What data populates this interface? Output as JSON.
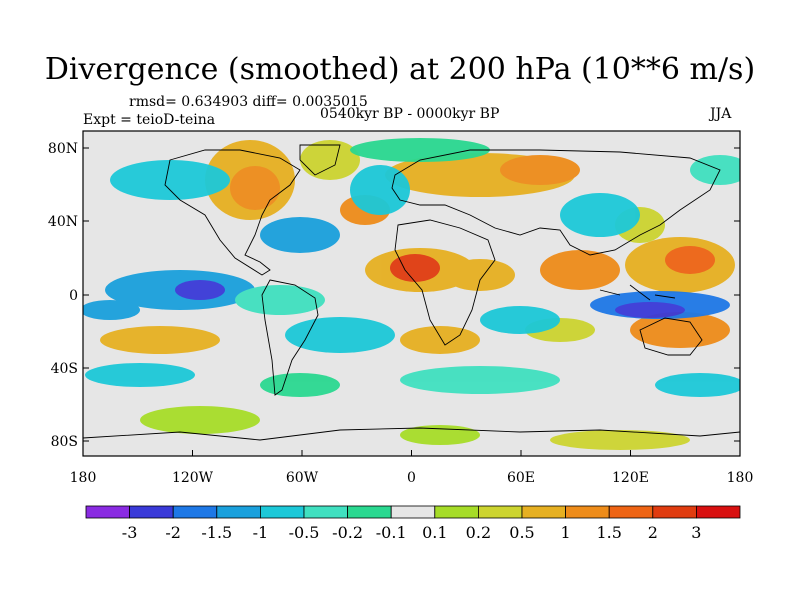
{
  "title": "Divergence (smoothed) at 200 hPa (10**6 m/s)",
  "stats_line": "rmsd= 0.634903 diff= 0.0035015",
  "experiment_line": "Expt = teioD-teina",
  "period_line": "0540kyr BP - 0000kyr BP",
  "season": "JJA",
  "lat_ticks": [
    "80N",
    "40N",
    "0",
    "40S",
    "80S"
  ],
  "lon_ticks": [
    "180",
    "120W",
    "60W",
    "0",
    "60E",
    "120E",
    "180"
  ],
  "colorbar": {
    "labels": [
      "-3",
      "-2",
      "-1.5",
      "-1",
      "-0.5",
      "-0.2",
      "-0.1",
      "0.1",
      "0.2",
      "0.5",
      "1",
      "1.5",
      "2",
      "3"
    ],
    "colors": [
      "#8a2be2",
      "#3a3ad8",
      "#1e78e6",
      "#1aa0dc",
      "#1cc8d8",
      "#40e0c0",
      "#2ad890",
      "#e6e6e6",
      "#a6dc28",
      "#ccd430",
      "#e6b022",
      "#ee8c1a",
      "#ee6414",
      "#e03c10",
      "#d81010"
    ]
  },
  "colors": {
    "land_outline": "#000000",
    "neutral": "#e6e6e6"
  }
}
